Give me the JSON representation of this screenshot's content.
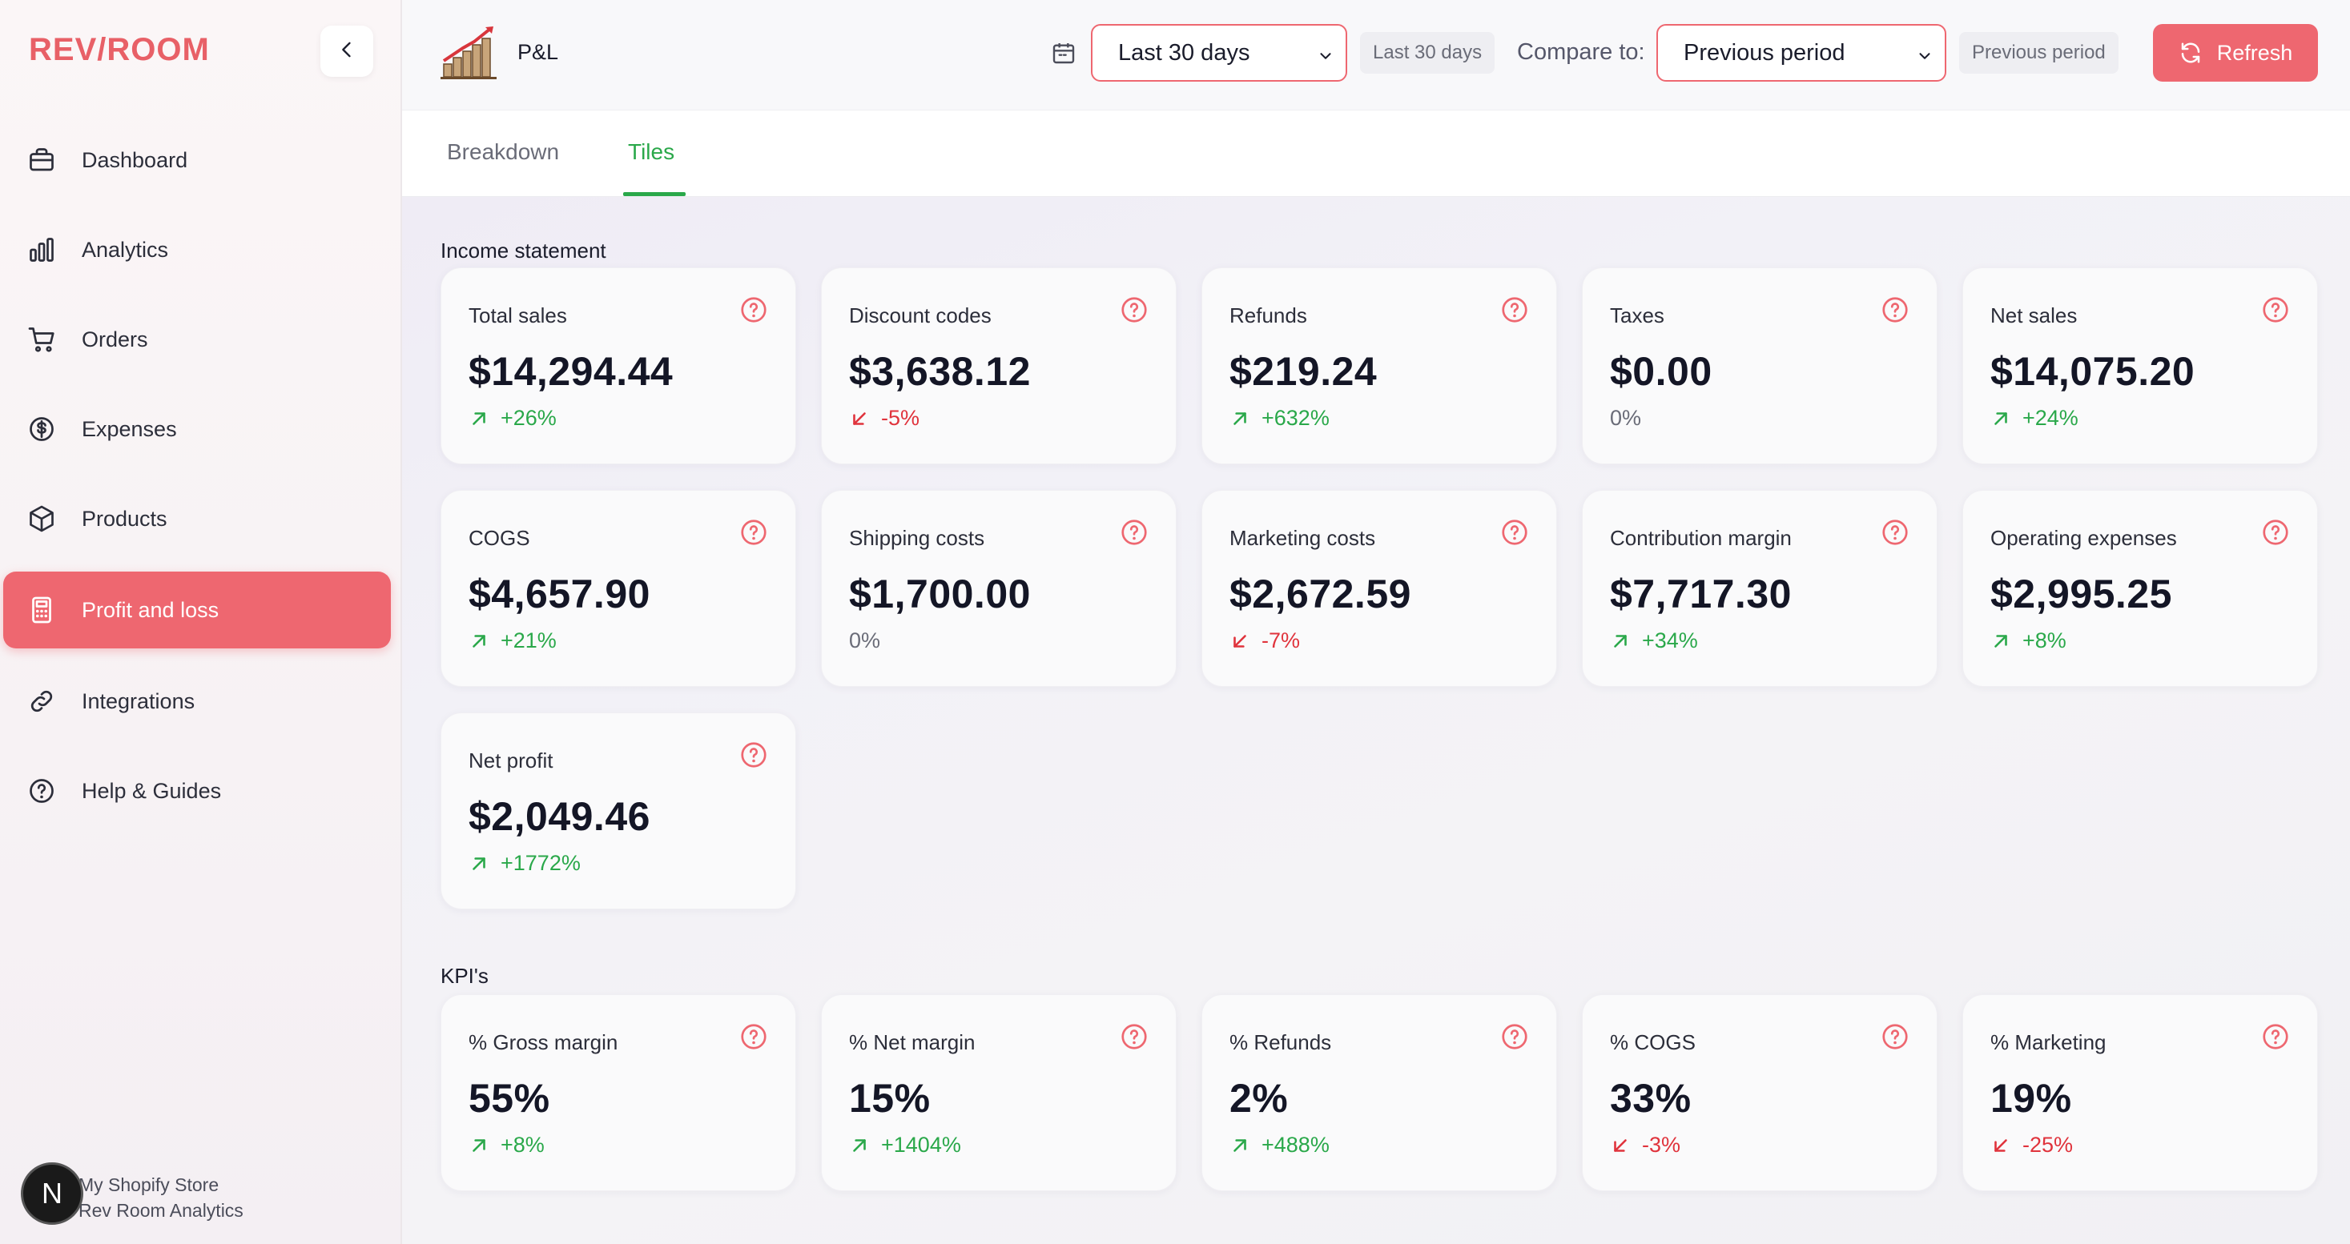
{
  "sidebar": {
    "logo": "REV/ROOM",
    "items": [
      {
        "label": "Dashboard",
        "icon": "briefcase-icon"
      },
      {
        "label": "Analytics",
        "icon": "bar-chart-icon"
      },
      {
        "label": "Orders",
        "icon": "cart-icon"
      },
      {
        "label": "Expenses",
        "icon": "dollar-circle-icon"
      },
      {
        "label": "Products",
        "icon": "box-icon"
      },
      {
        "label": "Profit and loss",
        "icon": "calculator-icon",
        "active": true
      },
      {
        "label": "Integrations",
        "icon": "link-icon"
      },
      {
        "label": "Help & Guides",
        "icon": "help-circle-icon"
      }
    ],
    "footer": {
      "store": "My Shopify Store",
      "product": "Rev Room Analytics",
      "badge": "N"
    }
  },
  "header": {
    "title": "P&L",
    "date_range": "Last 30 days",
    "date_range_chip": "Last 30 days",
    "compare_label": "Compare to:",
    "compare_value": "Previous period",
    "compare_chip": "Previous period",
    "refresh_label": "Refresh"
  },
  "tabs": [
    {
      "label": "Breakdown"
    },
    {
      "label": "Tiles",
      "active": true
    }
  ],
  "colors": {
    "accent": "#ee6770",
    "positive": "#2aa84a",
    "negative": "#e0333c"
  },
  "sections": {
    "income": {
      "title": "Income statement",
      "cards": [
        {
          "label": "Total sales",
          "value": "$14,294.44",
          "change": "+26%",
          "trend": "up"
        },
        {
          "label": "Discount codes",
          "value": "$3,638.12",
          "change": "-5%",
          "trend": "down"
        },
        {
          "label": "Refunds",
          "value": "$219.24",
          "change": "+632%",
          "trend": "up"
        },
        {
          "label": "Taxes",
          "value": "$0.00",
          "change": "0%",
          "trend": "flat"
        },
        {
          "label": "Net sales",
          "value": "$14,075.20",
          "change": "+24%",
          "trend": "up"
        },
        {
          "label": "COGS",
          "value": "$4,657.90",
          "change": "+21%",
          "trend": "up"
        },
        {
          "label": "Shipping costs",
          "value": "$1,700.00",
          "change": "0%",
          "trend": "flat"
        },
        {
          "label": "Marketing costs",
          "value": "$2,672.59",
          "change": "-7%",
          "trend": "down"
        },
        {
          "label": "Contribution margin",
          "value": "$7,717.30",
          "change": "+34%",
          "trend": "up"
        },
        {
          "label": "Operating expenses",
          "value": "$2,995.25",
          "change": "+8%",
          "trend": "up"
        },
        {
          "label": "Net profit",
          "value": "$2,049.46",
          "change": "+1772%",
          "trend": "up"
        }
      ]
    },
    "kpis": {
      "title": "KPI's",
      "cards": [
        {
          "label": "% Gross margin",
          "value": "55%",
          "change": "+8%",
          "trend": "up"
        },
        {
          "label": "% Net margin",
          "value": "15%",
          "change": "+1404%",
          "trend": "up"
        },
        {
          "label": "% Refunds",
          "value": "2%",
          "change": "+488%",
          "trend": "up"
        },
        {
          "label": "% COGS",
          "value": "33%",
          "change": "-3%",
          "trend": "down"
        },
        {
          "label": "% Marketing",
          "value": "19%",
          "change": "-25%",
          "trend": "down"
        }
      ]
    }
  }
}
